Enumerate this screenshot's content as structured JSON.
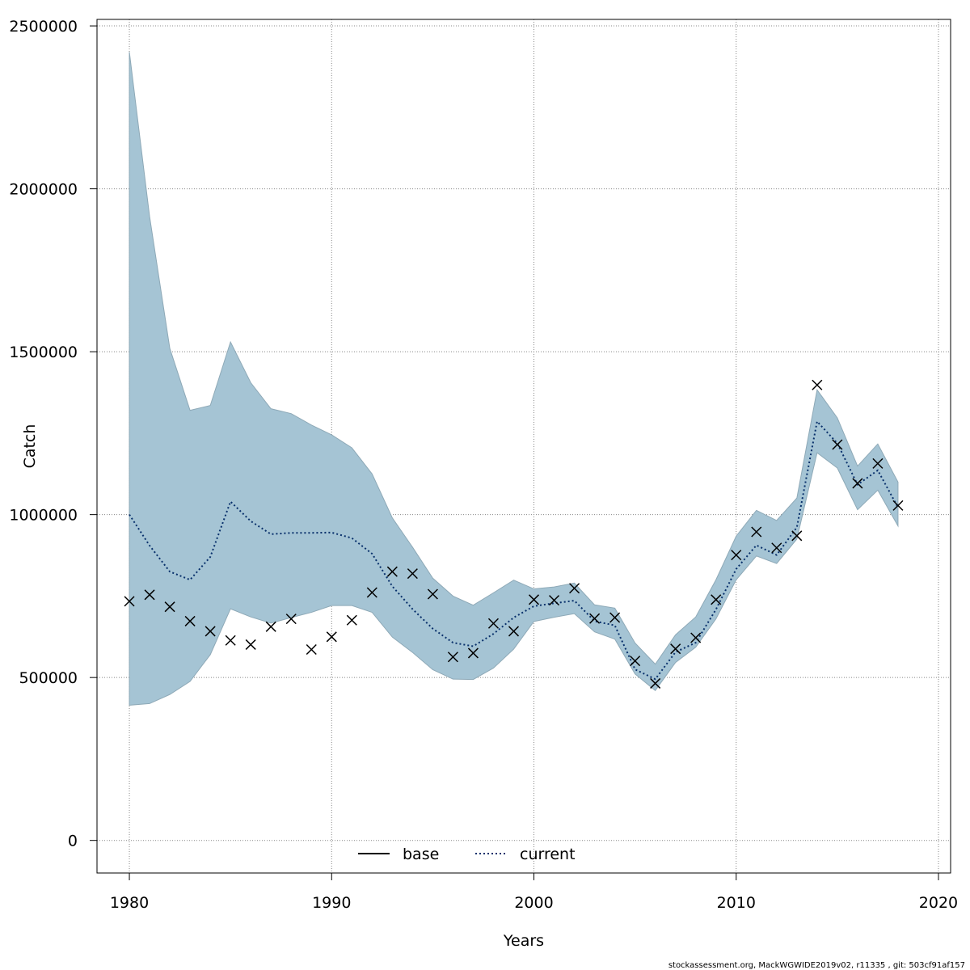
{
  "chart_data": {
    "type": "line",
    "xlabel": "Years",
    "ylabel": "Catch",
    "xlim": [
      1978.4,
      2020.6
    ],
    "ylim": [
      -100000,
      2520000
    ],
    "x_ticks": [
      1980,
      1990,
      2000,
      2010,
      2020
    ],
    "y_ticks": [
      0,
      500000,
      1000000,
      1500000,
      2000000,
      2500000
    ],
    "x_tick_labels": [
      "1980",
      "1990",
      "2000",
      "2010",
      "2020"
    ],
    "y_tick_labels": [
      "0",
      "500000",
      "1000000",
      "1500000",
      "2000000",
      "2500000"
    ],
    "grid": true,
    "legend_position": "bottom-center",
    "band_color": "#a5c4d4",
    "series": [
      {
        "name": "base",
        "style": "solid",
        "color": "#000000",
        "x": [],
        "y": []
      },
      {
        "name": "current",
        "style": "dotted",
        "color": "#08306b",
        "x": [
          1980,
          1981,
          1982,
          1983,
          1984,
          1985,
          1986,
          1987,
          1988,
          1989,
          1990,
          1991,
          1992,
          1993,
          1994,
          1995,
          1996,
          1997,
          1998,
          1999,
          2000,
          2001,
          2002,
          2003,
          2004,
          2005,
          2006,
          2007,
          2008,
          2009,
          2010,
          2011,
          2012,
          2013,
          2014,
          2015,
          2016,
          2017,
          2018
        ],
        "y": [
          1000000,
          905000,
          825000,
          800000,
          870000,
          1040000,
          980000,
          940000,
          944000,
          944000,
          945000,
          928000,
          880000,
          780000,
          710000,
          650000,
          607000,
          596000,
          634000,
          684000,
          719000,
          728000,
          736000,
          673000,
          660000,
          525000,
          495000,
          578000,
          607000,
          709000,
          833000,
          906000,
          876000,
          961000,
          1286000,
          1219000,
          1092000,
          1136000,
          1022000
        ],
        "lower": [
          415000,
          420000,
          448000,
          488000,
          570000,
          711000,
          686000,
          667000,
          684000,
          700000,
          721000,
          721000,
          700000,
          624000,
          577000,
          524000,
          495000,
          494000,
          529000,
          587000,
          672000,
          685000,
          696000,
          640000,
          618000,
          511000,
          460000,
          546000,
          593000,
          680000,
          800000,
          873000,
          850000,
          925000,
          1190000,
          1143000,
          1015000,
          1075000,
          965000
        ],
        "upper": [
          2420000,
          1915000,
          1510000,
          1320000,
          1335000,
          1530000,
          1405000,
          1325000,
          1310000,
          1275000,
          1245000,
          1205000,
          1125000,
          990000,
          900000,
          805000,
          750000,
          722000,
          760000,
          799000,
          772000,
          778000,
          790000,
          723000,
          713000,
          606000,
          541000,
          631000,
          686000,
          800000,
          934000,
          1013000,
          982000,
          1051000,
          1383000,
          1297000,
          1149000,
          1217000,
          1100000
        ]
      }
    ],
    "observed": {
      "marker": "x",
      "x": [
        1980,
        1981,
        1982,
        1983,
        1984,
        1985,
        1986,
        1987,
        1988,
        1989,
        1990,
        1991,
        1992,
        1993,
        1994,
        1995,
        1996,
        1997,
        1998,
        1999,
        2000,
        2001,
        2002,
        2003,
        2004,
        2005,
        2006,
        2007,
        2008,
        2009,
        2010,
        2011,
        2012,
        2013,
        2014,
        2015,
        2016,
        2017,
        2018
      ],
      "y": [
        734000,
        754000,
        717000,
        673000,
        642000,
        614000,
        601000,
        656000,
        680000,
        586000,
        625000,
        676000,
        761000,
        825000,
        819000,
        756000,
        563000,
        575000,
        666000,
        642000,
        739000,
        737000,
        774000,
        681000,
        684000,
        551000,
        482000,
        588000,
        622000,
        739000,
        876000,
        947000,
        898000,
        935000,
        1398000,
        1215000,
        1096000,
        1157000,
        1028000
      ]
    }
  },
  "legend": {
    "base_label": "base",
    "current_label": "current"
  },
  "footer": {
    "text": "stockassessment.org, MackWGWIDE2019v02, r11335 , git: 503cf91af157"
  }
}
